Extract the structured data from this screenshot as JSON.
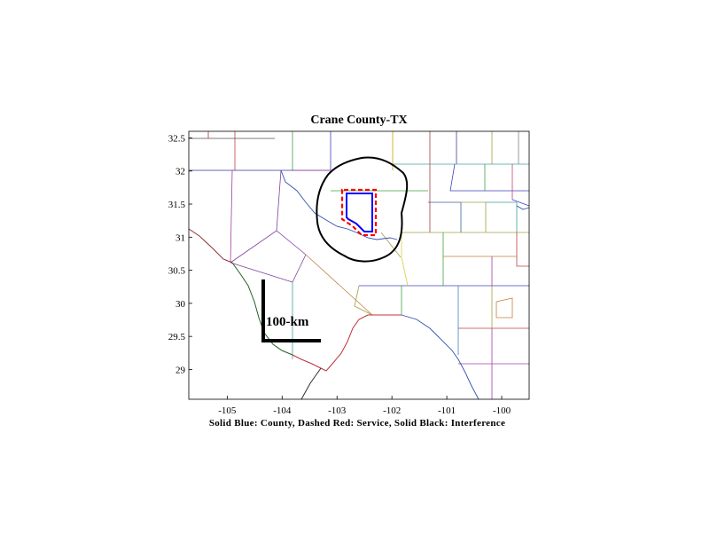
{
  "title": "Crane County-TX",
  "caption": "Solid Blue: County, Dashed Red: Service, Solid Black: Interference",
  "scale_bar": {
    "label": "100-km"
  },
  "axes": {
    "x_ticks": [
      "-105",
      "-104",
      "-103",
      "-102",
      "-101",
      "-100"
    ],
    "y_ticks": [
      "32.5",
      "32",
      "31.5",
      "31",
      "30.5",
      "30",
      "29.5",
      "29"
    ],
    "xlim": [
      -105.7,
      -99.5
    ],
    "ylim": [
      28.55,
      32.6
    ]
  },
  "legend_colors": {
    "county": "#0000ff",
    "service": "#ff0000",
    "interference": "#000000"
  }
}
